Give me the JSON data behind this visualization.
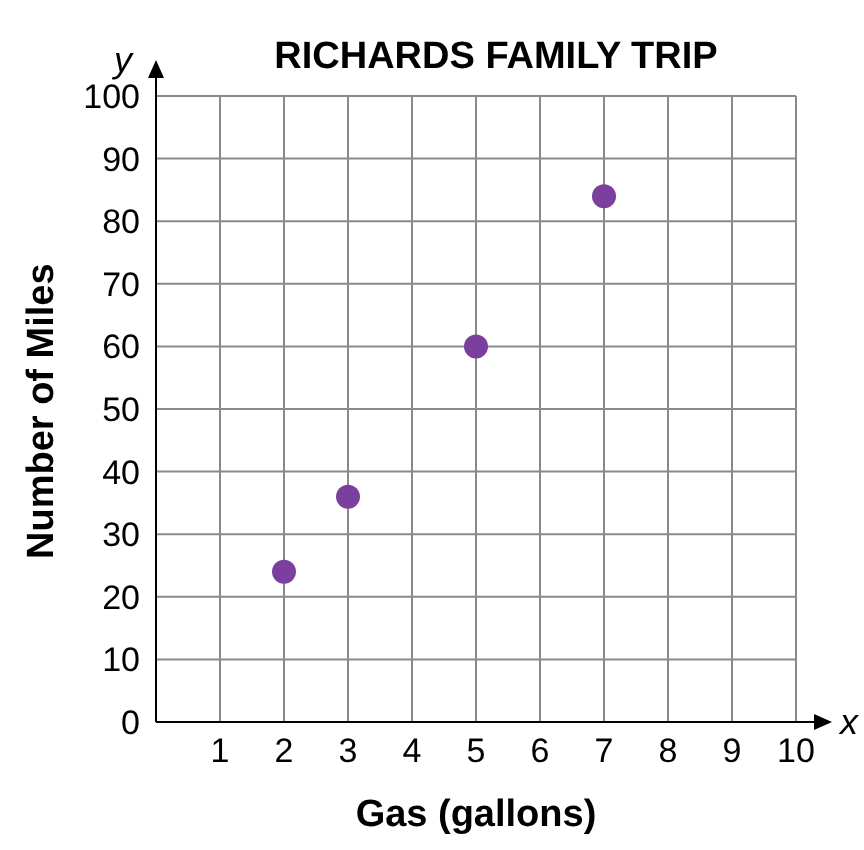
{
  "chart_data": {
    "type": "scatter",
    "title": "RICHARDS FAMILY TRIP",
    "xlabel": "Gas (gallons)",
    "ylabel": "Number of Miles",
    "annotations": [
      "x",
      "y"
    ],
    "x": [
      2,
      3,
      5,
      7
    ],
    "values": [
      24,
      36,
      60,
      84
    ],
    "color": "#7b3f9e",
    "xlim": [
      0,
      10
    ],
    "xticks": [
      1,
      2,
      3,
      4,
      5,
      6,
      7,
      8,
      9,
      10
    ],
    "ylim": [
      0,
      100
    ],
    "yticks": [
      0,
      10,
      20,
      30,
      40,
      50,
      60,
      70,
      80,
      90,
      100
    ],
    "grid": true,
    "marker": "circle"
  }
}
